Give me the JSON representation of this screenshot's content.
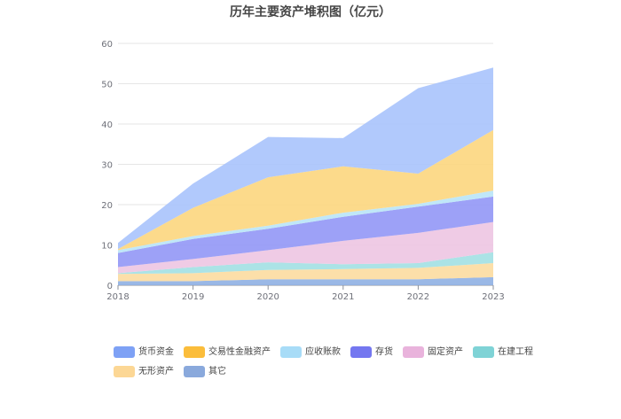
{
  "chart_data": {
    "type": "area",
    "stacked": true,
    "title": "历年主要资产堆积图（亿元）",
    "categories": [
      "2018",
      "2019",
      "2020",
      "2021",
      "2022",
      "2023"
    ],
    "ylim": [
      0,
      60
    ],
    "yticks": [
      0,
      10,
      20,
      30,
      40,
      50,
      60
    ],
    "grid": true,
    "legend_position": "bottom",
    "series": [
      {
        "name": "其它",
        "color": "#8fb0e3",
        "values": [
          1.0,
          1.0,
          1.5,
          1.5,
          1.5,
          2.0
        ]
      },
      {
        "name": "无形资产",
        "color": "#fcdca0",
        "values": [
          1.8,
          2.0,
          2.3,
          2.5,
          2.8,
          3.5
        ]
      },
      {
        "name": "在建工程",
        "color": "#a2e0e3",
        "values": [
          0.2,
          1.5,
          1.9,
          1.2,
          1.2,
          2.7
        ]
      },
      {
        "name": "固定资产",
        "color": "#edc5e2",
        "values": [
          1.5,
          2.0,
          3.0,
          5.8,
          7.5,
          7.5
        ]
      },
      {
        "name": "存货",
        "color": "#9297f6",
        "values": [
          3.5,
          5.0,
          5.3,
          6.0,
          6.5,
          6.3
        ]
      },
      {
        "name": "应收账款",
        "color": "#b9e4f7",
        "values": [
          0.7,
          0.7,
          0.8,
          1.0,
          0.7,
          1.5
        ]
      },
      {
        "name": "交易性金融资产",
        "color": "#fcd67e",
        "values": [
          0.3,
          7.0,
          12.0,
          11.5,
          7.5,
          15.0
        ]
      },
      {
        "name": "货币资金",
        "color": "#a9c3fc",
        "values": [
          1.5,
          6.0,
          10.0,
          7.0,
          21.2,
          15.5
        ]
      }
    ]
  },
  "legend_rows": [
    [
      "货币资金",
      "交易性金融资产",
      "应收账款",
      "存货",
      "固定资产",
      "在建工程"
    ],
    [
      "无形资产",
      "其它"
    ]
  ],
  "legend_colors": {
    "货币资金": "#7ea1f5",
    "交易性金融资产": "#fbbd3b",
    "应收账款": "#a8dcf7",
    "存货": "#7477f0",
    "固定资产": "#e9b3dc",
    "在建工程": "#7fd3d6",
    "无形资产": "#fcd795",
    "其它": "#8aa9dc"
  }
}
